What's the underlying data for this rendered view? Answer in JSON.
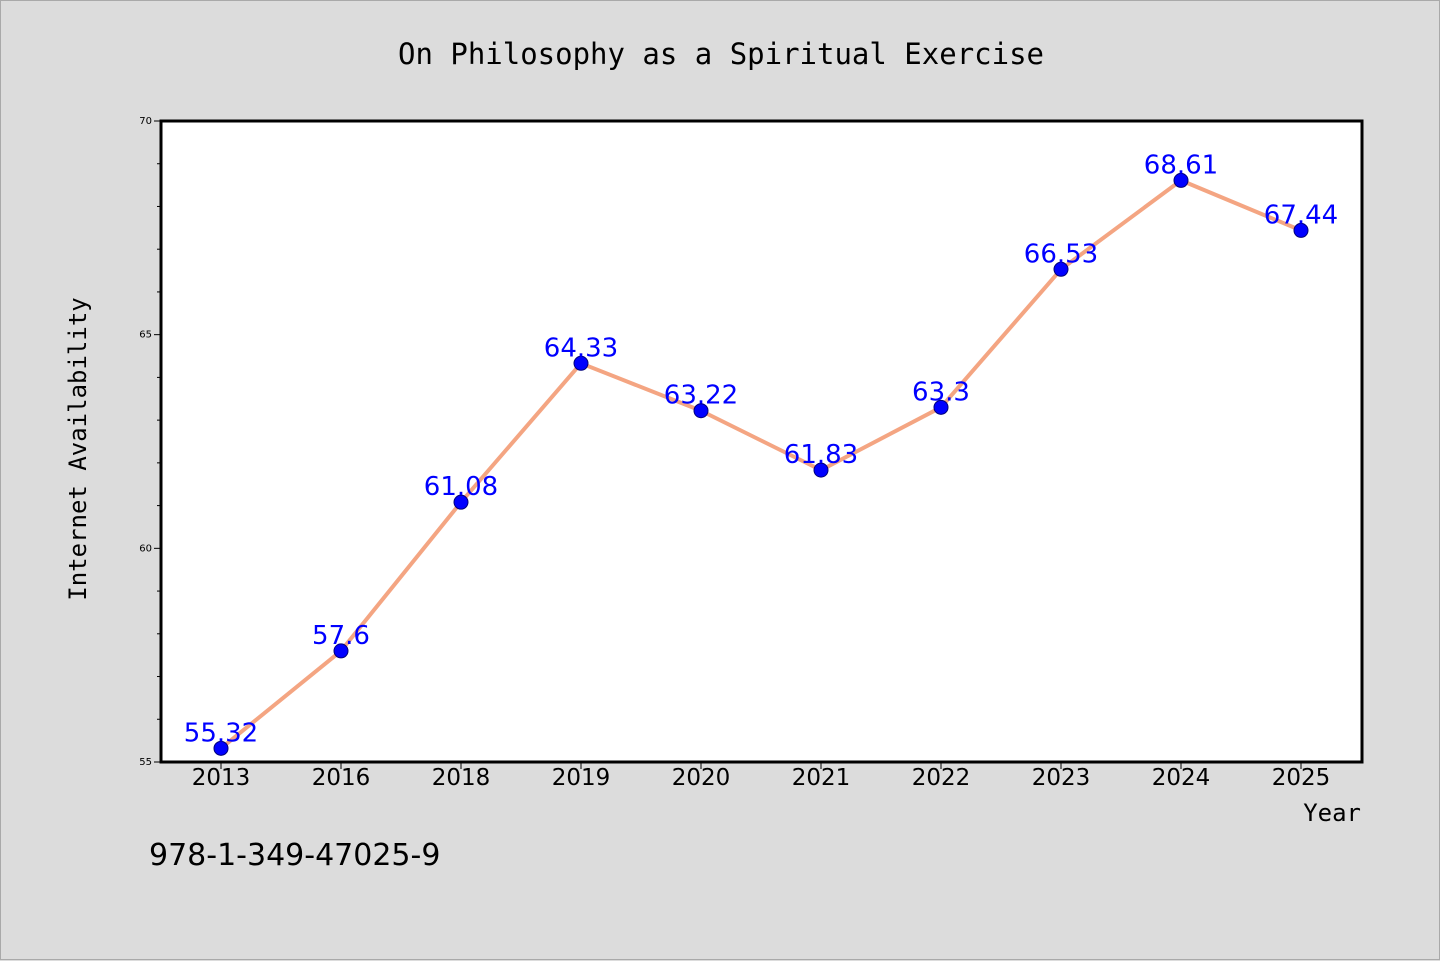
{
  "chart_data": {
    "type": "line",
    "title": "On Philosophy as a Spiritual Exercise",
    "xlabel": "Year",
    "ylabel": "Internet Availability",
    "categories": [
      "2013",
      "2016",
      "2018",
      "2019",
      "2020",
      "2021",
      "2022",
      "2023",
      "2024",
      "2025"
    ],
    "series": [
      {
        "values": [
          55.32,
          57.6,
          61.08,
          64.33,
          63.22,
          61.83,
          63.3,
          66.53,
          68.61,
          67.44
        ],
        "labels": [
          "55.32",
          "57.6",
          "61.08",
          "64.33",
          "63.22",
          "61.83",
          "63.3",
          "66.53",
          "68.61",
          "67.44"
        ],
        "line_color": "#f4a582",
        "marker_color": "#0000ff"
      }
    ],
    "ylim": [
      55,
      70
    ],
    "yticks": [
      "55",
      "60",
      "65",
      "70"
    ],
    "grid": false,
    "legend": "none"
  },
  "annotation": {
    "isbn": "978-1-349-47025-9"
  },
  "colors": {
    "background": "#dcdcdc",
    "plot_background": "#ffffff",
    "label_color": "#0000ff"
  }
}
